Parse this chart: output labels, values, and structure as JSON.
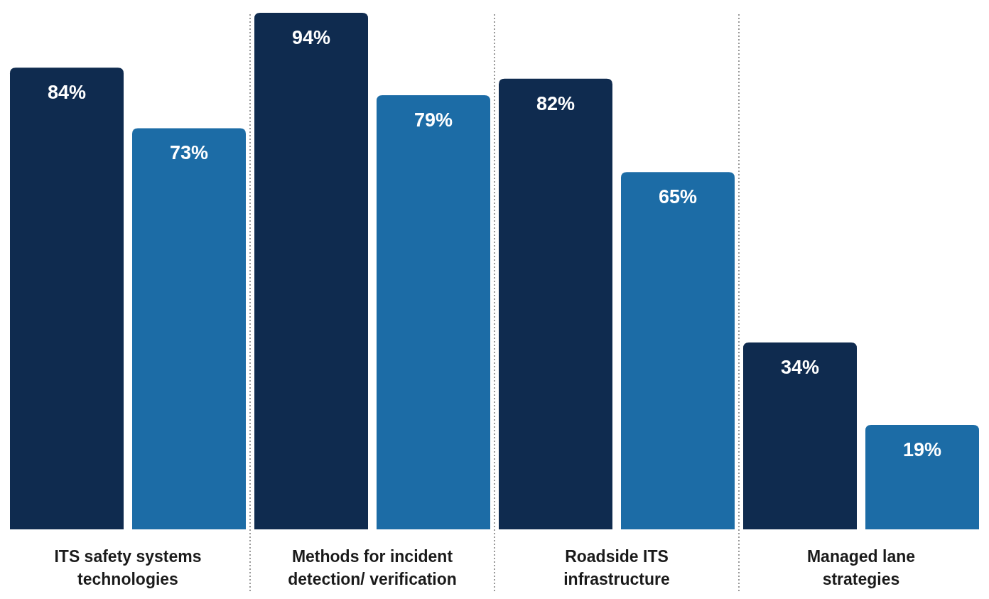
{
  "chart_data": {
    "type": "bar",
    "categories": [
      "ITS safety systems technologies",
      "Methods for incident detection/ verification",
      "Roadside ITS infrastructure",
      "Managed lane strategies"
    ],
    "series": [
      {
        "color": "#0f2b4f",
        "values": [
          84,
          94,
          82,
          34
        ],
        "value_labels": [
          "84%",
          "94%",
          "82%",
          "34%"
        ]
      },
      {
        "color": "#1c6ca6",
        "values": [
          73,
          79,
          65,
          19
        ],
        "value_labels": [
          "73%",
          "79%",
          "65%",
          "19%"
        ]
      }
    ]
  }
}
